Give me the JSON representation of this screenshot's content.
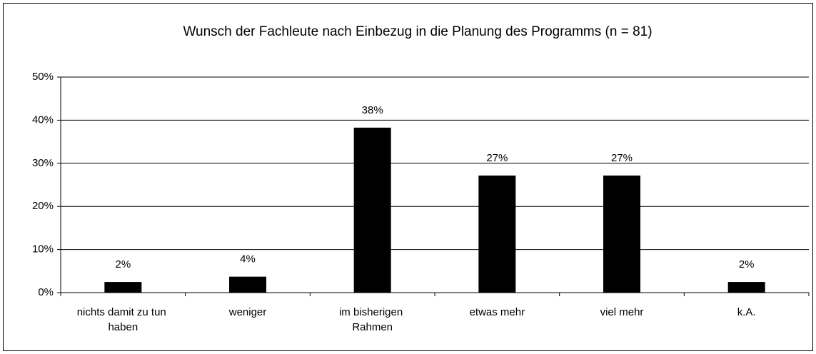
{
  "chart_data": {
    "type": "bar",
    "title": "Wunsch der Fachleute nach Einbezug in die Planung des Programms  (n = 81)",
    "categories": [
      "nichts damit zu tun haben",
      "weniger",
      "im bisherigen Rahmen",
      "etwas mehr",
      "viel mehr",
      "k.A."
    ],
    "values": [
      2.47,
      3.7,
      38.27,
      27.16,
      27.16,
      2.47
    ],
    "value_labels": [
      "2%",
      "4%",
      "38%",
      "27%",
      "27%",
      "2%"
    ],
    "color": "#000000",
    "ylim": [
      0,
      50
    ],
    "yticks": [
      {
        "value": 0,
        "label": "0%"
      },
      {
        "value": 10,
        "label": "10%"
      },
      {
        "value": 20,
        "label": "20%"
      },
      {
        "value": 30,
        "label": "30%"
      },
      {
        "value": 40,
        "label": "40%"
      },
      {
        "value": 50,
        "label": "50%"
      }
    ],
    "grid": true
  }
}
